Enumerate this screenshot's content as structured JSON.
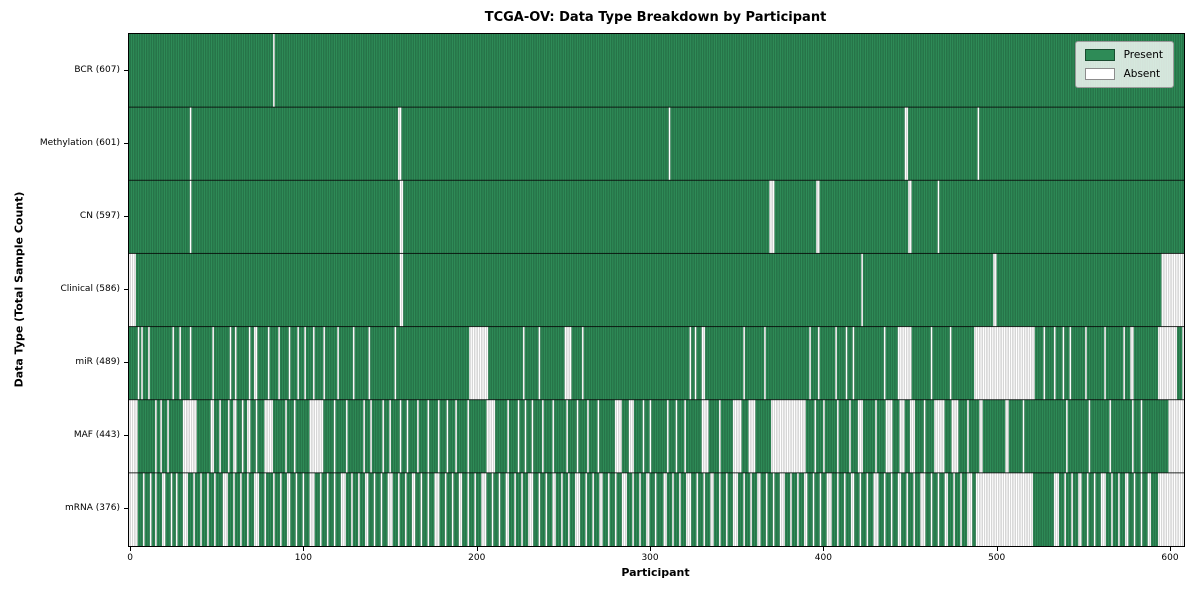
{
  "title": "TCGA-OV: Data Type Breakdown by Participant",
  "xlabel": "Participant",
  "ylabel": "Data Type (Total Sample Count)",
  "legend": {
    "present_label": "Present",
    "absent_label": "Absent"
  },
  "colors": {
    "present": "#2E8B57",
    "absent": "#FFFFFF",
    "bar_edge": "rgba(0,0,0,0.32)",
    "row_separator": "rgba(0,0,0,0.8)",
    "background": "#FFFFFF"
  },
  "chart_data": {
    "type": "heatmap",
    "subtype": "presence-absence-matrix",
    "title": "TCGA-OV: Data Type Breakdown by Participant",
    "xlabel": "Participant",
    "ylabel": "Data Type (Total Sample Count)",
    "legend_entries": [
      "Present",
      "Absent"
    ],
    "legend_position": "upper right",
    "grid": false,
    "n_participants": 608,
    "xlim": [
      -1.2,
      607.5
    ],
    "x_ticks": [
      0,
      100,
      200,
      300,
      400,
      500,
      600
    ],
    "rows": [
      {
        "name": "BCR",
        "label": "BCR (607)",
        "present_count": 607,
        "absent_ranges": [
          [
            83,
            83
          ]
        ]
      },
      {
        "name": "Methylation",
        "label": "Methylation (601)",
        "present_count": 601,
        "absent_ranges": [
          [
            35,
            35
          ],
          [
            155,
            156
          ],
          [
            311,
            311
          ],
          [
            447,
            448
          ],
          [
            489,
            489
          ]
        ]
      },
      {
        "name": "CN",
        "label": "CN (597)",
        "present_count": 597,
        "absent_ranges": [
          [
            35,
            35
          ],
          [
            156,
            157
          ],
          [
            369,
            371
          ],
          [
            396,
            397
          ],
          [
            449,
            450
          ],
          [
            466,
            466
          ]
        ]
      },
      {
        "name": "Clinical",
        "label": "Clinical (586)",
        "present_count": 586,
        "absent_ranges": [
          [
            0,
            3
          ],
          [
            156,
            157
          ],
          [
            422,
            422
          ],
          [
            498,
            499
          ],
          [
            595,
            607
          ]
        ]
      },
      {
        "name": "miR",
        "label": "miR (489)",
        "present_count": 489,
        "absent_ranges": [
          [
            5,
            5
          ],
          [
            7,
            7
          ],
          [
            11,
            11
          ],
          [
            25,
            25
          ],
          [
            29,
            29
          ],
          [
            35,
            35
          ],
          [
            48,
            48
          ],
          [
            58,
            58
          ],
          [
            61,
            61
          ],
          [
            69,
            69
          ],
          [
            72,
            73
          ],
          [
            80,
            80
          ],
          [
            86,
            86
          ],
          [
            92,
            92
          ],
          [
            97,
            97
          ],
          [
            101,
            101
          ],
          [
            106,
            106
          ],
          [
            112,
            112
          ],
          [
            120,
            120
          ],
          [
            129,
            129
          ],
          [
            138,
            138
          ],
          [
            153,
            153
          ],
          [
            196,
            206
          ],
          [
            227,
            227
          ],
          [
            236,
            236
          ],
          [
            251,
            254
          ],
          [
            261,
            261
          ],
          [
            323,
            323
          ],
          [
            326,
            326
          ],
          [
            330,
            331
          ],
          [
            354,
            354
          ],
          [
            366,
            366
          ],
          [
            392,
            392
          ],
          [
            397,
            397
          ],
          [
            407,
            407
          ],
          [
            413,
            413
          ],
          [
            417,
            417
          ],
          [
            435,
            435
          ],
          [
            443,
            450
          ],
          [
            462,
            462
          ],
          [
            473,
            473
          ],
          [
            487,
            521
          ],
          [
            527,
            527
          ],
          [
            533,
            533
          ],
          [
            538,
            538
          ],
          [
            542,
            542
          ],
          [
            551,
            551
          ],
          [
            562,
            562
          ],
          [
            573,
            573
          ],
          [
            577,
            578
          ],
          [
            593,
            603
          ],
          [
            607,
            607
          ]
        ]
      },
      {
        "name": "MAF",
        "label": "MAF (443)",
        "present_count": 443,
        "absent_ranges": [
          [
            0,
            4
          ],
          [
            15,
            15
          ],
          [
            18,
            18
          ],
          [
            22,
            22
          ],
          [
            31,
            38
          ],
          [
            47,
            48
          ],
          [
            52,
            52
          ],
          [
            57,
            57
          ],
          [
            60,
            61
          ],
          [
            65,
            65
          ],
          [
            68,
            69
          ],
          [
            73,
            73
          ],
          [
            78,
            82
          ],
          [
            90,
            90
          ],
          [
            95,
            95
          ],
          [
            104,
            111
          ],
          [
            118,
            118
          ],
          [
            125,
            125
          ],
          [
            135,
            135
          ],
          [
            139,
            139
          ],
          [
            146,
            146
          ],
          [
            150,
            150
          ],
          [
            156,
            156
          ],
          [
            160,
            160
          ],
          [
            166,
            166
          ],
          [
            172,
            172
          ],
          [
            178,
            178
          ],
          [
            183,
            183
          ],
          [
            188,
            188
          ],
          [
            195,
            195
          ],
          [
            206,
            210
          ],
          [
            218,
            218
          ],
          [
            224,
            224
          ],
          [
            228,
            228
          ],
          [
            232,
            232
          ],
          [
            238,
            238
          ],
          [
            244,
            244
          ],
          [
            252,
            252
          ],
          [
            258,
            258
          ],
          [
            264,
            264
          ],
          [
            270,
            270
          ],
          [
            280,
            283
          ],
          [
            288,
            290
          ],
          [
            296,
            296
          ],
          [
            300,
            300
          ],
          [
            310,
            310
          ],
          [
            315,
            315
          ],
          [
            320,
            320
          ],
          [
            330,
            333
          ],
          [
            340,
            340
          ],
          [
            348,
            352
          ],
          [
            357,
            360
          ],
          [
            370,
            389
          ],
          [
            395,
            395
          ],
          [
            400,
            400
          ],
          [
            408,
            408
          ],
          [
            415,
            415
          ],
          [
            420,
            422
          ],
          [
            430,
            430
          ],
          [
            436,
            439
          ],
          [
            444,
            446
          ],
          [
            450,
            452
          ],
          [
            458,
            458
          ],
          [
            464,
            469
          ],
          [
            474,
            477
          ],
          [
            483,
            483
          ],
          [
            490,
            491
          ],
          [
            505,
            506
          ],
          [
            515,
            515
          ],
          [
            540,
            540
          ],
          [
            553,
            553
          ],
          [
            565,
            565
          ],
          [
            578,
            578
          ],
          [
            583,
            583
          ],
          [
            599,
            607
          ]
        ]
      },
      {
        "name": "mRNA",
        "label": "mRNA (376)",
        "present_count": 376,
        "absent_ranges": [
          [
            0,
            4
          ],
          [
            8,
            8
          ],
          [
            12,
            12
          ],
          [
            15,
            15
          ],
          [
            19,
            20
          ],
          [
            24,
            24
          ],
          [
            27,
            27
          ],
          [
            31,
            33
          ],
          [
            37,
            37
          ],
          [
            41,
            41
          ],
          [
            45,
            45
          ],
          [
            49,
            49
          ],
          [
            54,
            56
          ],
          [
            60,
            60
          ],
          [
            64,
            64
          ],
          [
            68,
            68
          ],
          [
            72,
            74
          ],
          [
            78,
            78
          ],
          [
            83,
            83
          ],
          [
            87,
            87
          ],
          [
            91,
            92
          ],
          [
            96,
            96
          ],
          [
            100,
            100
          ],
          [
            104,
            106
          ],
          [
            110,
            110
          ],
          [
            114,
            114
          ],
          [
            118,
            118
          ],
          [
            122,
            124
          ],
          [
            128,
            128
          ],
          [
            132,
            132
          ],
          [
            136,
            137
          ],
          [
            141,
            141
          ],
          [
            145,
            145
          ],
          [
            149,
            151
          ],
          [
            155,
            155
          ],
          [
            159,
            159
          ],
          [
            163,
            164
          ],
          [
            168,
            168
          ],
          [
            172,
            172
          ],
          [
            176,
            178
          ],
          [
            182,
            182
          ],
          [
            186,
            186
          ],
          [
            190,
            191
          ],
          [
            195,
            195
          ],
          [
            199,
            199
          ],
          [
            203,
            205
          ],
          [
            209,
            209
          ],
          [
            213,
            213
          ],
          [
            217,
            218
          ],
          [
            222,
            222
          ],
          [
            226,
            226
          ],
          [
            230,
            232
          ],
          [
            236,
            236
          ],
          [
            240,
            240
          ],
          [
            244,
            245
          ],
          [
            249,
            249
          ],
          [
            253,
            253
          ],
          [
            257,
            259
          ],
          [
            263,
            263
          ],
          [
            267,
            267
          ],
          [
            271,
            272
          ],
          [
            276,
            276
          ],
          [
            280,
            280
          ],
          [
            284,
            286
          ],
          [
            290,
            290
          ],
          [
            294,
            294
          ],
          [
            298,
            299
          ],
          [
            303,
            303
          ],
          [
            308,
            309
          ],
          [
            313,
            313
          ],
          [
            317,
            317
          ],
          [
            321,
            323
          ],
          [
            327,
            327
          ],
          [
            331,
            331
          ],
          [
            335,
            336
          ],
          [
            340,
            340
          ],
          [
            344,
            344
          ],
          [
            348,
            350
          ],
          [
            354,
            354
          ],
          [
            358,
            358
          ],
          [
            362,
            363
          ],
          [
            367,
            367
          ],
          [
            371,
            371
          ],
          [
            375,
            377
          ],
          [
            381,
            381
          ],
          [
            385,
            385
          ],
          [
            389,
            390
          ],
          [
            394,
            394
          ],
          [
            398,
            398
          ],
          [
            402,
            404
          ],
          [
            408,
            408
          ],
          [
            412,
            412
          ],
          [
            416,
            417
          ],
          [
            421,
            421
          ],
          [
            425,
            425
          ],
          [
            429,
            431
          ],
          [
            435,
            435
          ],
          [
            439,
            439
          ],
          [
            443,
            444
          ],
          [
            448,
            448
          ],
          [
            452,
            452
          ],
          [
            456,
            458
          ],
          [
            462,
            462
          ],
          [
            466,
            466
          ],
          [
            470,
            471
          ],
          [
            475,
            475
          ],
          [
            479,
            479
          ],
          [
            483,
            485
          ],
          [
            488,
            520
          ],
          [
            533,
            535
          ],
          [
            539,
            539
          ],
          [
            543,
            543
          ],
          [
            547,
            548
          ],
          [
            552,
            552
          ],
          [
            556,
            556
          ],
          [
            560,
            562
          ],
          [
            566,
            566
          ],
          [
            570,
            570
          ],
          [
            574,
            575
          ],
          [
            579,
            579
          ],
          [
            583,
            583
          ],
          [
            587,
            588
          ],
          [
            593,
            607
          ]
        ]
      }
    ]
  }
}
